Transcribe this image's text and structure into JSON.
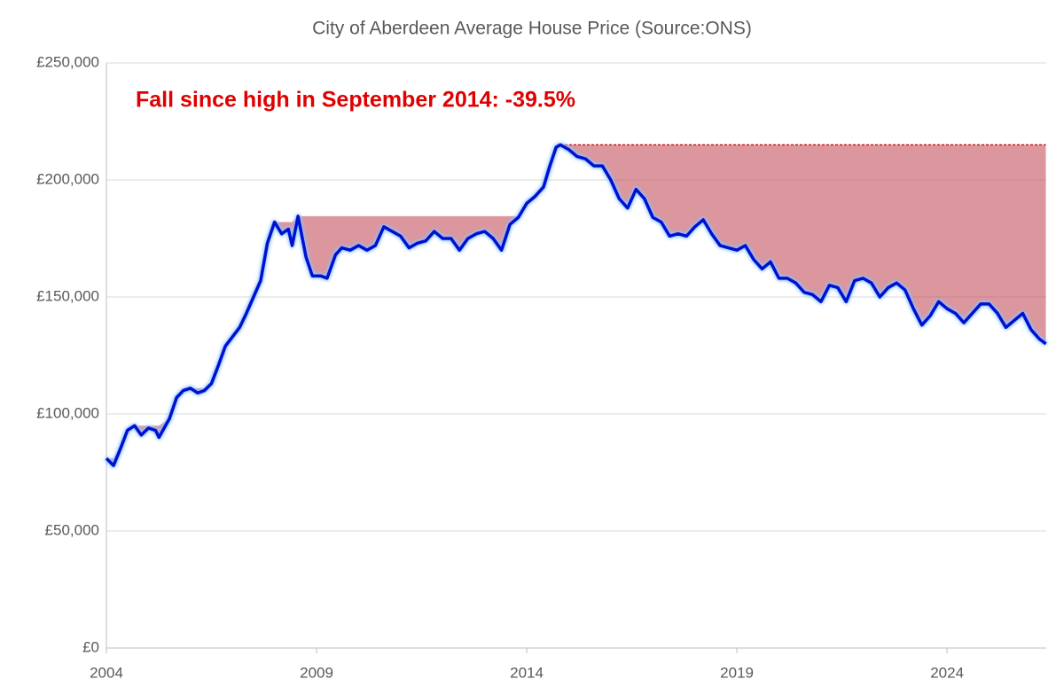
{
  "chart_data": {
    "type": "line",
    "title": "City of Aberdeen Average House Price (Source:ONS)",
    "annotation": "Fall since high in September 2014: -39.5%",
    "x": [
      2004.0,
      2004.17,
      2004.33,
      2004.5,
      2004.67,
      2004.83,
      2005.0,
      2005.17,
      2005.25,
      2005.5,
      2005.67,
      2005.83,
      2006.0,
      2006.17,
      2006.33,
      2006.5,
      2006.67,
      2006.83,
      2007.0,
      2007.17,
      2007.33,
      2007.5,
      2007.67,
      2007.83,
      2008.0,
      2008.17,
      2008.33,
      2008.42,
      2008.56,
      2008.75,
      2008.9,
      2009.1,
      2009.25,
      2009.45,
      2009.6,
      2009.8,
      2010.0,
      2010.2,
      2010.4,
      2010.6,
      2010.8,
      2011.0,
      2011.2,
      2011.4,
      2011.6,
      2011.8,
      2012.0,
      2012.2,
      2012.4,
      2012.6,
      2012.8,
      2013.0,
      2013.2,
      2013.4,
      2013.6,
      2013.8,
      2014.0,
      2014.2,
      2014.4,
      2014.55,
      2014.7,
      2014.8,
      2015.0,
      2015.2,
      2015.4,
      2015.6,
      2015.8,
      2016.0,
      2016.2,
      2016.4,
      2016.6,
      2016.8,
      2017.0,
      2017.2,
      2017.4,
      2017.6,
      2017.8,
      2018.0,
      2018.2,
      2018.4,
      2018.6,
      2018.8,
      2019.0,
      2019.2,
      2019.4,
      2019.6,
      2019.8,
      2020.0,
      2020.2,
      2020.4,
      2020.6,
      2020.8,
      2021.0,
      2021.2,
      2021.4,
      2021.6,
      2021.8,
      2022.0,
      2022.2,
      2022.4,
      2022.6,
      2022.8,
      2023.0,
      2023.2,
      2023.4,
      2023.6,
      2023.8,
      2024.0,
      2024.2,
      2024.4,
      2024.6,
      2024.8,
      2025.0,
      2025.2,
      2025.4,
      2025.6,
      2025.8,
      2026.0,
      2026.2,
      2026.35
    ],
    "series": [
      {
        "color": "#0010d0",
        "values": [
          81000,
          78000,
          85000,
          93000,
          95000,
          91000,
          94000,
          93000,
          90000,
          98000,
          107000,
          110000,
          111000,
          109000,
          110000,
          113000,
          121000,
          129000,
          133000,
          137000,
          143000,
          150000,
          157000,
          173000,
          182000,
          177000,
          179000,
          172000,
          184500,
          167000,
          159000,
          159000,
          158000,
          168000,
          171000,
          170000,
          172000,
          170000,
          172000,
          180000,
          178000,
          176000,
          171000,
          173000,
          174000,
          178000,
          175000,
          175000,
          170000,
          175000,
          177000,
          178000,
          175000,
          170000,
          181000,
          184000,
          190000,
          193000,
          197000,
          206000,
          214000,
          215000,
          213000,
          210000,
          209000,
          206000,
          206000,
          200000,
          192000,
          188000,
          196000,
          192000,
          184000,
          182000,
          176000,
          177000,
          176000,
          180000,
          183000,
          177000,
          172000,
          171000,
          170000,
          172000,
          166000,
          162000,
          165000,
          158000,
          158000,
          156000,
          152000,
          151000,
          148000,
          155000,
          154000,
          148000,
          157000,
          158000,
          156000,
          150000,
          154000,
          156000,
          153000,
          145000,
          138000,
          142000,
          148000,
          145000,
          143000,
          139000,
          143000,
          147000,
          147000,
          143000,
          137000,
          140000,
          143000,
          136000,
          132000,
          130000
        ]
      }
    ],
    "xlim": [
      2004,
      2026.36
    ],
    "xticks": [
      2004,
      2009,
      2014,
      2019,
      2024
    ],
    "ylim": [
      0,
      250000
    ],
    "yticks": [
      {
        "value": 0,
        "label": "£0"
      },
      {
        "value": 50000,
        "label": "£50,000"
      },
      {
        "value": 100000,
        "label": "£100,000"
      },
      {
        "value": 150000,
        "label": "£150,000"
      },
      {
        "value": 200000,
        "label": "£200,000"
      },
      {
        "value": 250000,
        "label": "£250,000"
      }
    ],
    "fill_color": "#c0404f",
    "grid": true
  }
}
